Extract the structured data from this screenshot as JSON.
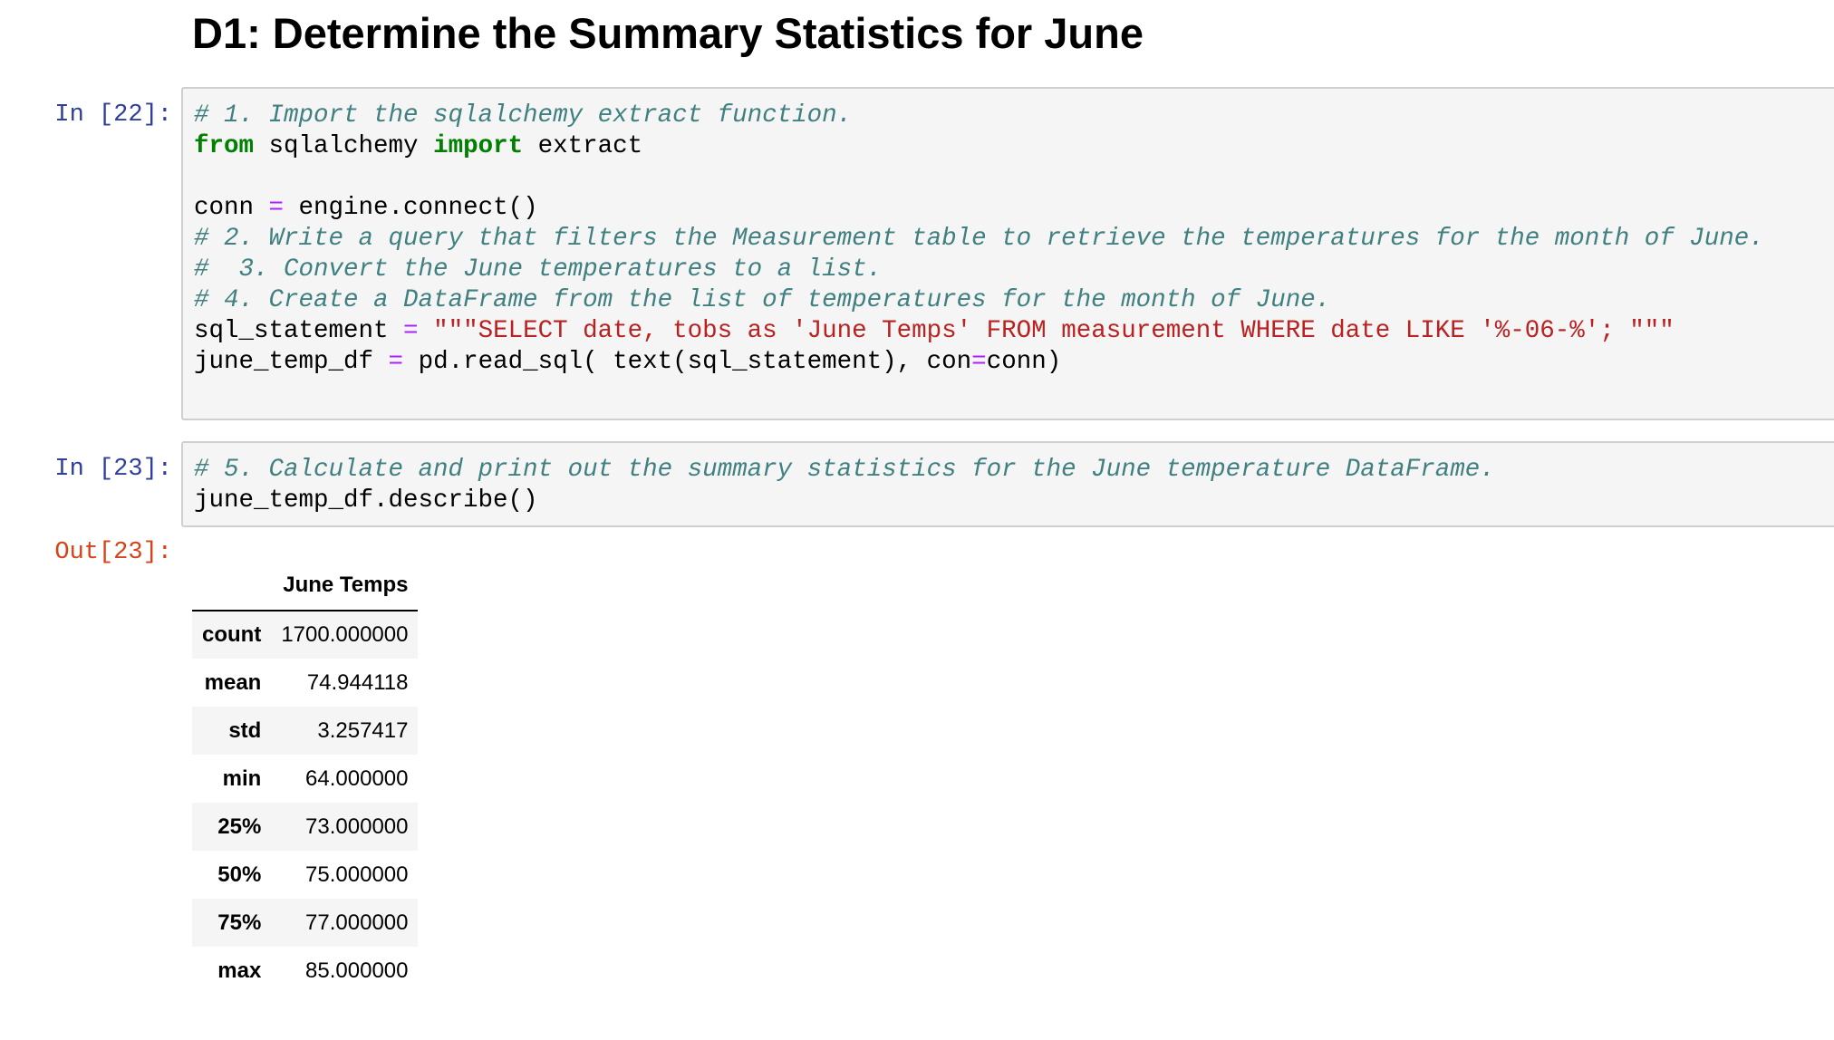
{
  "heading": "D1: Determine the Summary Statistics for June",
  "cells": [
    {
      "prompt": "In [22]:",
      "lines": [
        [
          {
            "t": "c",
            "v": "# 1. Import the sqlalchemy extract function."
          }
        ],
        [
          {
            "t": "k",
            "v": "from"
          },
          {
            "t": "n",
            "v": " sqlalchemy "
          },
          {
            "t": "k",
            "v": "import"
          },
          {
            "t": "n",
            "v": " extract"
          }
        ],
        [],
        [
          {
            "t": "n",
            "v": "conn "
          },
          {
            "t": "o",
            "v": "="
          },
          {
            "t": "n",
            "v": " engine.connect()"
          }
        ],
        [
          {
            "t": "c",
            "v": "# 2. Write a query that filters the Measurement table to retrieve the temperatures for the month of June."
          }
        ],
        [
          {
            "t": "c",
            "v": "#  3. Convert the June temperatures to a list."
          }
        ],
        [
          {
            "t": "c",
            "v": "# 4. Create a DataFrame from the list of temperatures for the month of June."
          }
        ],
        [
          {
            "t": "n",
            "v": "sql_statement "
          },
          {
            "t": "o",
            "v": "="
          },
          {
            "t": "n",
            "v": " "
          },
          {
            "t": "s",
            "v": "\"\"\"SELECT date, tobs as 'June Temps' FROM measurement WHERE date LIKE '%-06-%'; \"\"\""
          }
        ],
        [
          {
            "t": "n",
            "v": "june_temp_df "
          },
          {
            "t": "o",
            "v": "="
          },
          {
            "t": "n",
            "v": " pd.read_sql( text(sql_statement), con"
          },
          {
            "t": "o",
            "v": "="
          },
          {
            "t": "n",
            "v": "conn)"
          }
        ]
      ]
    },
    {
      "prompt": "In [23]:",
      "lines": [
        [
          {
            "t": "c",
            "v": "# 5. Calculate and print out the summary statistics for the June temperature DataFrame."
          }
        ],
        [
          {
            "t": "n",
            "v": "june_temp_df.describe()"
          }
        ]
      ]
    }
  ],
  "output": {
    "prompt": "Out[23]:",
    "table": {
      "columns": [
        "",
        "June Temps"
      ],
      "rows": [
        [
          "count",
          "1700.000000"
        ],
        [
          "mean",
          "74.944118"
        ],
        [
          "std",
          "3.257417"
        ],
        [
          "min",
          "64.000000"
        ],
        [
          "25%",
          "73.000000"
        ],
        [
          "50%",
          "75.000000"
        ],
        [
          "75%",
          "77.000000"
        ],
        [
          "max",
          "85.000000"
        ]
      ]
    }
  }
}
